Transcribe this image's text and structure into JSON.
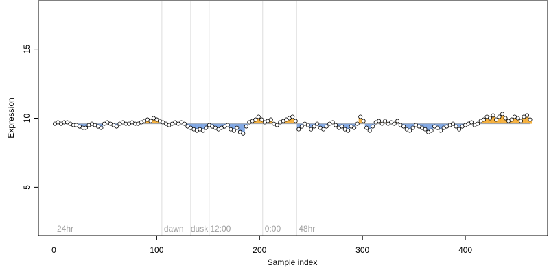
{
  "chart_data": {
    "type": "scatter",
    "title": "",
    "xlabel": "Sample index",
    "ylabel": "Expression",
    "xlim": [
      -15,
      480
    ],
    "ylim": [
      1.5,
      18.5
    ],
    "xticks": [
      0,
      100,
      200,
      300,
      400
    ],
    "xtick_labels": [
      "0",
      "100",
      "200",
      "300",
      "400"
    ],
    "yticks": [
      5,
      10,
      15
    ],
    "ytick_labels": [
      "5",
      "10",
      "15"
    ],
    "grid": false,
    "legend": "none",
    "baseline": 9.6,
    "colors": {
      "point_stroke": "#000000",
      "point_fill_neutral": "#ffffff",
      "above_baseline": "#f5a623",
      "below_baseline": "#6e9be0",
      "vline": "#dddddd",
      "annotation": "#a0a0a0"
    },
    "vlines": [
      105,
      133,
      151,
      203,
      236
    ],
    "annotations": [
      {
        "x": 3,
        "label": "24hr"
      },
      {
        "x": 107,
        "label": "dawn"
      },
      {
        "x": 133,
        "label": "dusk"
      },
      {
        "x": 152,
        "label": "12:00"
      },
      {
        "x": 205,
        "label": "0:00"
      },
      {
        "x": 238,
        "label": "48hr"
      }
    ],
    "series": [
      {
        "x": [
          1,
          4,
          7,
          10,
          13,
          16,
          19,
          22,
          25,
          28,
          31,
          34,
          37,
          40,
          43,
          46,
          49,
          52,
          55,
          58,
          61,
          64,
          67,
          70,
          73,
          76,
          79,
          82,
          85,
          88,
          91,
          94,
          97,
          100,
          103,
          106,
          109,
          112,
          115,
          118,
          121,
          124,
          127,
          130,
          133,
          136,
          139,
          142,
          145,
          148,
          151,
          154,
          157,
          160,
          163,
          166,
          169,
          172,
          175,
          178,
          181,
          184,
          187,
          190,
          193,
          196,
          199,
          202,
          205,
          208,
          211,
          214,
          217,
          220,
          223,
          226,
          229,
          232,
          235,
          238,
          241,
          244,
          247,
          250,
          253,
          256,
          259,
          262,
          265,
          268,
          271,
          274,
          277,
          280,
          283,
          286,
          289,
          292,
          295,
          298,
          301,
          304,
          307,
          310,
          313,
          316,
          319,
          322,
          325,
          328,
          331,
          334,
          337,
          340,
          343,
          346,
          349,
          352,
          355,
          358,
          361,
          364,
          367,
          370,
          373,
          376,
          379,
          382,
          385,
          388,
          391,
          394,
          397,
          400,
          403,
          406,
          409,
          412,
          415,
          418,
          421,
          424,
          427,
          430,
          433,
          436,
          439,
          442,
          445,
          448,
          451,
          454,
          457,
          460,
          463
        ],
        "y": [
          9.6,
          9.7,
          9.6,
          9.7,
          9.7,
          9.6,
          9.5,
          9.5,
          9.4,
          9.3,
          9.3,
          9.5,
          9.6,
          9.5,
          9.4,
          9.3,
          9.6,
          9.7,
          9.6,
          9.5,
          9.4,
          9.6,
          9.7,
          9.6,
          9.6,
          9.7,
          9.6,
          9.6,
          9.7,
          9.8,
          9.9,
          9.8,
          10.0,
          9.9,
          9.8,
          9.7,
          9.6,
          9.5,
          9.6,
          9.7,
          9.6,
          9.7,
          9.6,
          9.4,
          9.3,
          9.2,
          9.1,
          9.2,
          9.1,
          9.3,
          9.5,
          9.4,
          9.3,
          9.2,
          9.3,
          9.4,
          9.5,
          9.2,
          9.1,
          9.3,
          9.0,
          8.9,
          9.4,
          9.7,
          9.8,
          9.9,
          10.1,
          9.9,
          9.7,
          9.8,
          9.9,
          9.6,
          9.5,
          9.7,
          9.8,
          9.9,
          10.0,
          10.1,
          9.8,
          9.2,
          9.4,
          9.6,
          9.5,
          9.2,
          9.4,
          9.6,
          9.3,
          9.2,
          9.4,
          9.6,
          9.7,
          9.5,
          9.3,
          9.4,
          9.2,
          9.1,
          9.4,
          9.3,
          9.6,
          10.1,
          9.8,
          9.3,
          9.1,
          9.4,
          9.7,
          9.8,
          9.6,
          9.8,
          9.6,
          9.7,
          9.6,
          9.8,
          9.5,
          9.4,
          9.2,
          9.1,
          9.3,
          9.5,
          9.4,
          9.3,
          9.2,
          9.0,
          9.1,
          9.4,
          9.3,
          9.1,
          9.3,
          9.4,
          9.5,
          9.6,
          9.4,
          9.2,
          9.4,
          9.5,
          9.6,
          9.7,
          9.5,
          9.6,
          9.8,
          9.9,
          10.1,
          10.0,
          10.2,
          9.9,
          10.1,
          10.3,
          10.0,
          9.8,
          9.9,
          10.1,
          10.0,
          9.8,
          10.1,
          10.2,
          9.9
        ]
      }
    ]
  }
}
